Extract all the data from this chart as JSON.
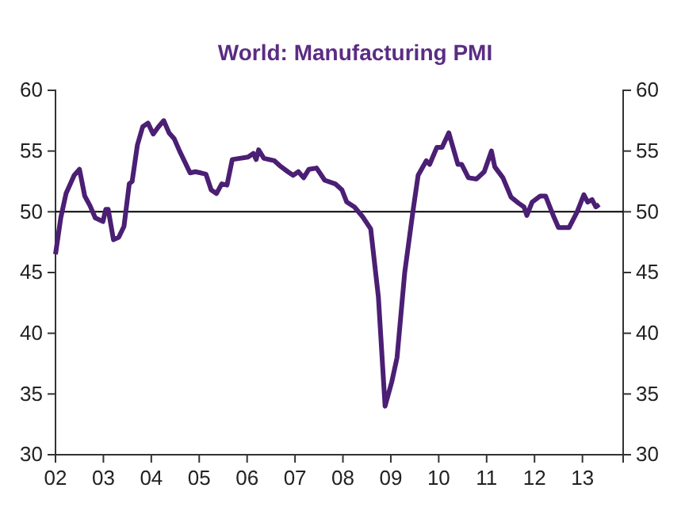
{
  "chart_data": {
    "type": "line",
    "title": "World: Manufacturing PMI",
    "x": [
      2002.0,
      2002.11,
      2002.22,
      2002.39,
      2002.5,
      2002.61,
      2002.72,
      2002.83,
      2002.99,
      2003.05,
      2003.1,
      2003.21,
      2003.32,
      2003.43,
      2003.54,
      2003.6,
      2003.71,
      2003.82,
      2003.93,
      2004.04,
      2004.15,
      2004.26,
      2004.37,
      2004.48,
      2004.59,
      2004.81,
      2004.92,
      2005.14,
      2005.25,
      2005.36,
      2005.47,
      2005.58,
      2005.69,
      2006.02,
      2006.13,
      2006.19,
      2006.24,
      2006.35,
      2006.57,
      2006.68,
      2006.85,
      2006.96,
      2007.07,
      2007.18,
      2007.29,
      2007.45,
      2007.62,
      2007.84,
      2007.98,
      2008.08,
      2008.24,
      2008.41,
      2008.58,
      2008.74,
      2008.88,
      2009.02,
      2009.13,
      2009.29,
      2009.46,
      2009.57,
      2009.74,
      2009.81,
      2009.96,
      2010.07,
      2010.21,
      2010.4,
      2010.48,
      2010.62,
      2010.79,
      2010.95,
      2011.1,
      2011.17,
      2011.34,
      2011.51,
      2011.67,
      2011.78,
      2011.84,
      2011.95,
      2012.12,
      2012.23,
      2012.39,
      2012.5,
      2012.72,
      2012.89,
      2013.03,
      2013.11,
      2013.2,
      2013.28,
      2013.35
    ],
    "series": [
      {
        "color": "#4b1f74",
        "values": [
          46.5,
          49.5,
          51.5,
          53.0,
          53.5,
          51.3,
          50.5,
          49.5,
          49.2,
          50.2,
          50.2,
          47.7,
          47.9,
          48.8,
          52.3,
          52.5,
          55.5,
          57.0,
          57.3,
          56.4,
          57.0,
          57.5,
          56.5,
          56.0,
          55.0,
          53.2,
          53.3,
          53.1,
          51.8,
          51.5,
          52.3,
          52.2,
          54.3,
          54.5,
          54.8,
          54.3,
          55.1,
          54.4,
          54.2,
          53.8,
          53.3,
          53.0,
          53.3,
          52.8,
          53.5,
          53.6,
          52.6,
          52.3,
          51.8,
          50.8,
          50.4,
          49.6,
          48.6,
          43.0,
          34.0,
          36.0,
          38.0,
          45.0,
          50.0,
          53.0,
          54.2,
          53.9,
          55.3,
          55.3,
          56.5,
          53.9,
          53.9,
          52.8,
          52.7,
          53.3,
          55.0,
          53.7,
          52.8,
          51.2,
          50.7,
          50.4,
          49.7,
          50.8,
          51.3,
          51.3,
          49.7,
          48.7,
          48.7,
          50.0,
          51.4,
          50.8,
          51.0,
          50.4,
          50.6
        ]
      }
    ],
    "xlim": [
      2002,
      2013.85
    ],
    "xticks": [
      {
        "value": 2002,
        "label": "02"
      },
      {
        "value": 2003,
        "label": "03"
      },
      {
        "value": 2004,
        "label": "04"
      },
      {
        "value": 2005,
        "label": "05"
      },
      {
        "value": 2006,
        "label": "06"
      },
      {
        "value": 2007,
        "label": "07"
      },
      {
        "value": 2008,
        "label": "08"
      },
      {
        "value": 2009,
        "label": "09"
      },
      {
        "value": 2010,
        "label": "10"
      },
      {
        "value": 2011,
        "label": "11"
      },
      {
        "value": 2012,
        "label": "12"
      },
      {
        "value": 2013,
        "label": "13"
      }
    ],
    "ylim": [
      30,
      60
    ],
    "yticks": [
      30,
      35,
      40,
      45,
      50,
      55,
      60
    ],
    "y2lim": [
      30,
      60
    ],
    "y2ticks": [
      30,
      35,
      40,
      45,
      50,
      55,
      60
    ],
    "ref_lines": [
      {
        "axis": "y",
        "value": 50,
        "color": "#000000"
      }
    ],
    "line_style": "solid"
  }
}
